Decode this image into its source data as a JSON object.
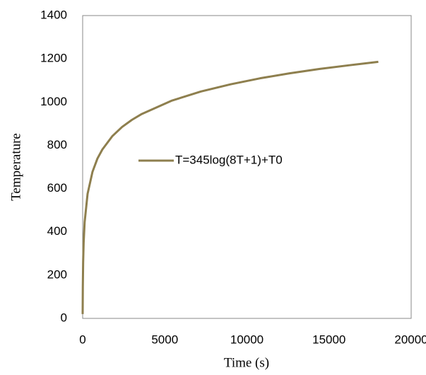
{
  "chart_data": {
    "type": "line",
    "x_label": "Time (s)",
    "y_label": "Temperature",
    "x": [
      0,
      10,
      30,
      60,
      120,
      300,
      600,
      900,
      1200,
      1800,
      2400,
      3000,
      3600,
      5400,
      7200,
      9000,
      10800,
      12600,
      14400,
      16200,
      18000
    ],
    "series": [
      {
        "name": "T=345log(8T+1)+T0",
        "color": "#8e7f4e",
        "values": [
          20,
          147,
          261,
          349,
          445,
          576,
          678,
          739,
          781,
          842,
          885,
          918,
          945,
          1006,
          1049,
          1082,
          1110,
          1133,
          1153,
          1170,
          1186
        ]
      }
    ],
    "xlim": [
      0,
      20000
    ],
    "xticks": [
      0,
      5000,
      10000,
      15000,
      20000
    ],
    "ylim": [
      0,
      1400
    ],
    "yticks": [
      0,
      200,
      400,
      600,
      800,
      1000,
      1200,
      1400
    ],
    "grid": false,
    "legend": "center"
  }
}
